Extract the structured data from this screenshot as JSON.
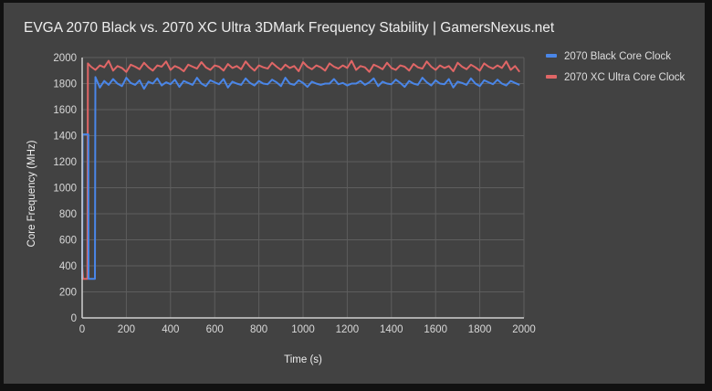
{
  "chart_data": {
    "type": "line",
    "title": "EVGA 2070 Black vs. 2070 XC Ultra 3DMark Frequency Stability | GamersNexus.net",
    "xlabel": "Time (s)",
    "ylabel": "Core Frequency (MHz)",
    "xlim": [
      0,
      2000
    ],
    "ylim": [
      0,
      2000
    ],
    "x_ticks": [
      "0",
      "200",
      "400",
      "600",
      "800",
      "1000",
      "1200",
      "1400",
      "1600",
      "1800",
      "2000"
    ],
    "y_ticks": [
      "0",
      "200",
      "400",
      "600",
      "800",
      "1000",
      "1200",
      "1400",
      "1600",
      "1800",
      "2000"
    ],
    "grid": true,
    "legend_position": "right",
    "series": [
      {
        "name": "2070 Black Core Clock",
        "color": "#4a86e8",
        "transient": [
          [
            0,
            300
          ],
          [
            2,
            1410
          ],
          [
            28,
            1410
          ],
          [
            29,
            300
          ],
          [
            58,
            300
          ],
          [
            60,
            1850
          ]
        ],
        "steady_start": 80,
        "steady_step": 20,
        "values": [
          1770,
          1820,
          1790,
          1835,
          1800,
          1780,
          1845,
          1805,
          1790,
          1825,
          1760,
          1815,
          1800,
          1840,
          1785,
          1810,
          1795,
          1830,
          1775,
          1820,
          1805,
          1790,
          1845,
          1800,
          1780,
          1825,
          1810,
          1795,
          1835,
          1770,
          1815,
          1800,
          1790,
          1840,
          1805,
          1785,
          1820,
          1800,
          1795,
          1830,
          1810,
          1780,
          1845,
          1800,
          1790,
          1825,
          1805,
          1775,
          1815,
          1800,
          1790,
          1800,
          1800,
          1835,
          1795,
          1805,
          1785,
          1800,
          1800,
          1820,
          1790,
          1810,
          1840,
          1780,
          1815,
          1800,
          1795,
          1830,
          1805,
          1775,
          1820,
          1800,
          1790,
          1845,
          1810,
          1785,
          1825,
          1800,
          1795,
          1835,
          1770,
          1815,
          1805,
          1790,
          1840,
          1800,
          1780,
          1825,
          1810,
          1795,
          1830,
          1800,
          1785,
          1820,
          1805,
          1790
        ]
      },
      {
        "name": "2070 XC Ultra Core Clock",
        "color": "#e06666",
        "transient": [
          [
            0,
            400
          ],
          [
            4,
            300
          ],
          [
            24,
            300
          ],
          [
            26,
            1955
          ],
          [
            40,
            1930
          ]
        ],
        "steady_start": 60,
        "steady_step": 20,
        "values": [
          1905,
          1940,
          1925,
          1975,
          1900,
          1935,
          1920,
          1890,
          1945,
          1930,
          1910,
          1960,
          1925,
          1900,
          1940,
          1930,
          1970,
          1905,
          1935,
          1920,
          1895,
          1945,
          1930,
          1915,
          1965,
          1925,
          1905,
          1940,
          1930,
          1900,
          1950,
          1920,
          1935,
          1910,
          1970,
          1930,
          1900,
          1940,
          1925,
          1915,
          1960,
          1930,
          1905,
          1945,
          1920,
          1935,
          1895,
          1965,
          1930,
          1910,
          1940,
          1925,
          1900,
          1955,
          1930,
          1915,
          1940,
          1920,
          1975,
          1905,
          1935,
          1925,
          1890,
          1945,
          1930,
          1910,
          1960,
          1920,
          1905,
          1940,
          1930,
          1900,
          1950,
          1925,
          1915,
          1970,
          1930,
          1905,
          1940,
          1920,
          1935,
          1895,
          1960,
          1930,
          1910,
          1945,
          1925,
          1900,
          1955,
          1930,
          1915,
          1940,
          1920,
          1970,
          1905,
          1935,
          1890
        ]
      }
    ]
  }
}
